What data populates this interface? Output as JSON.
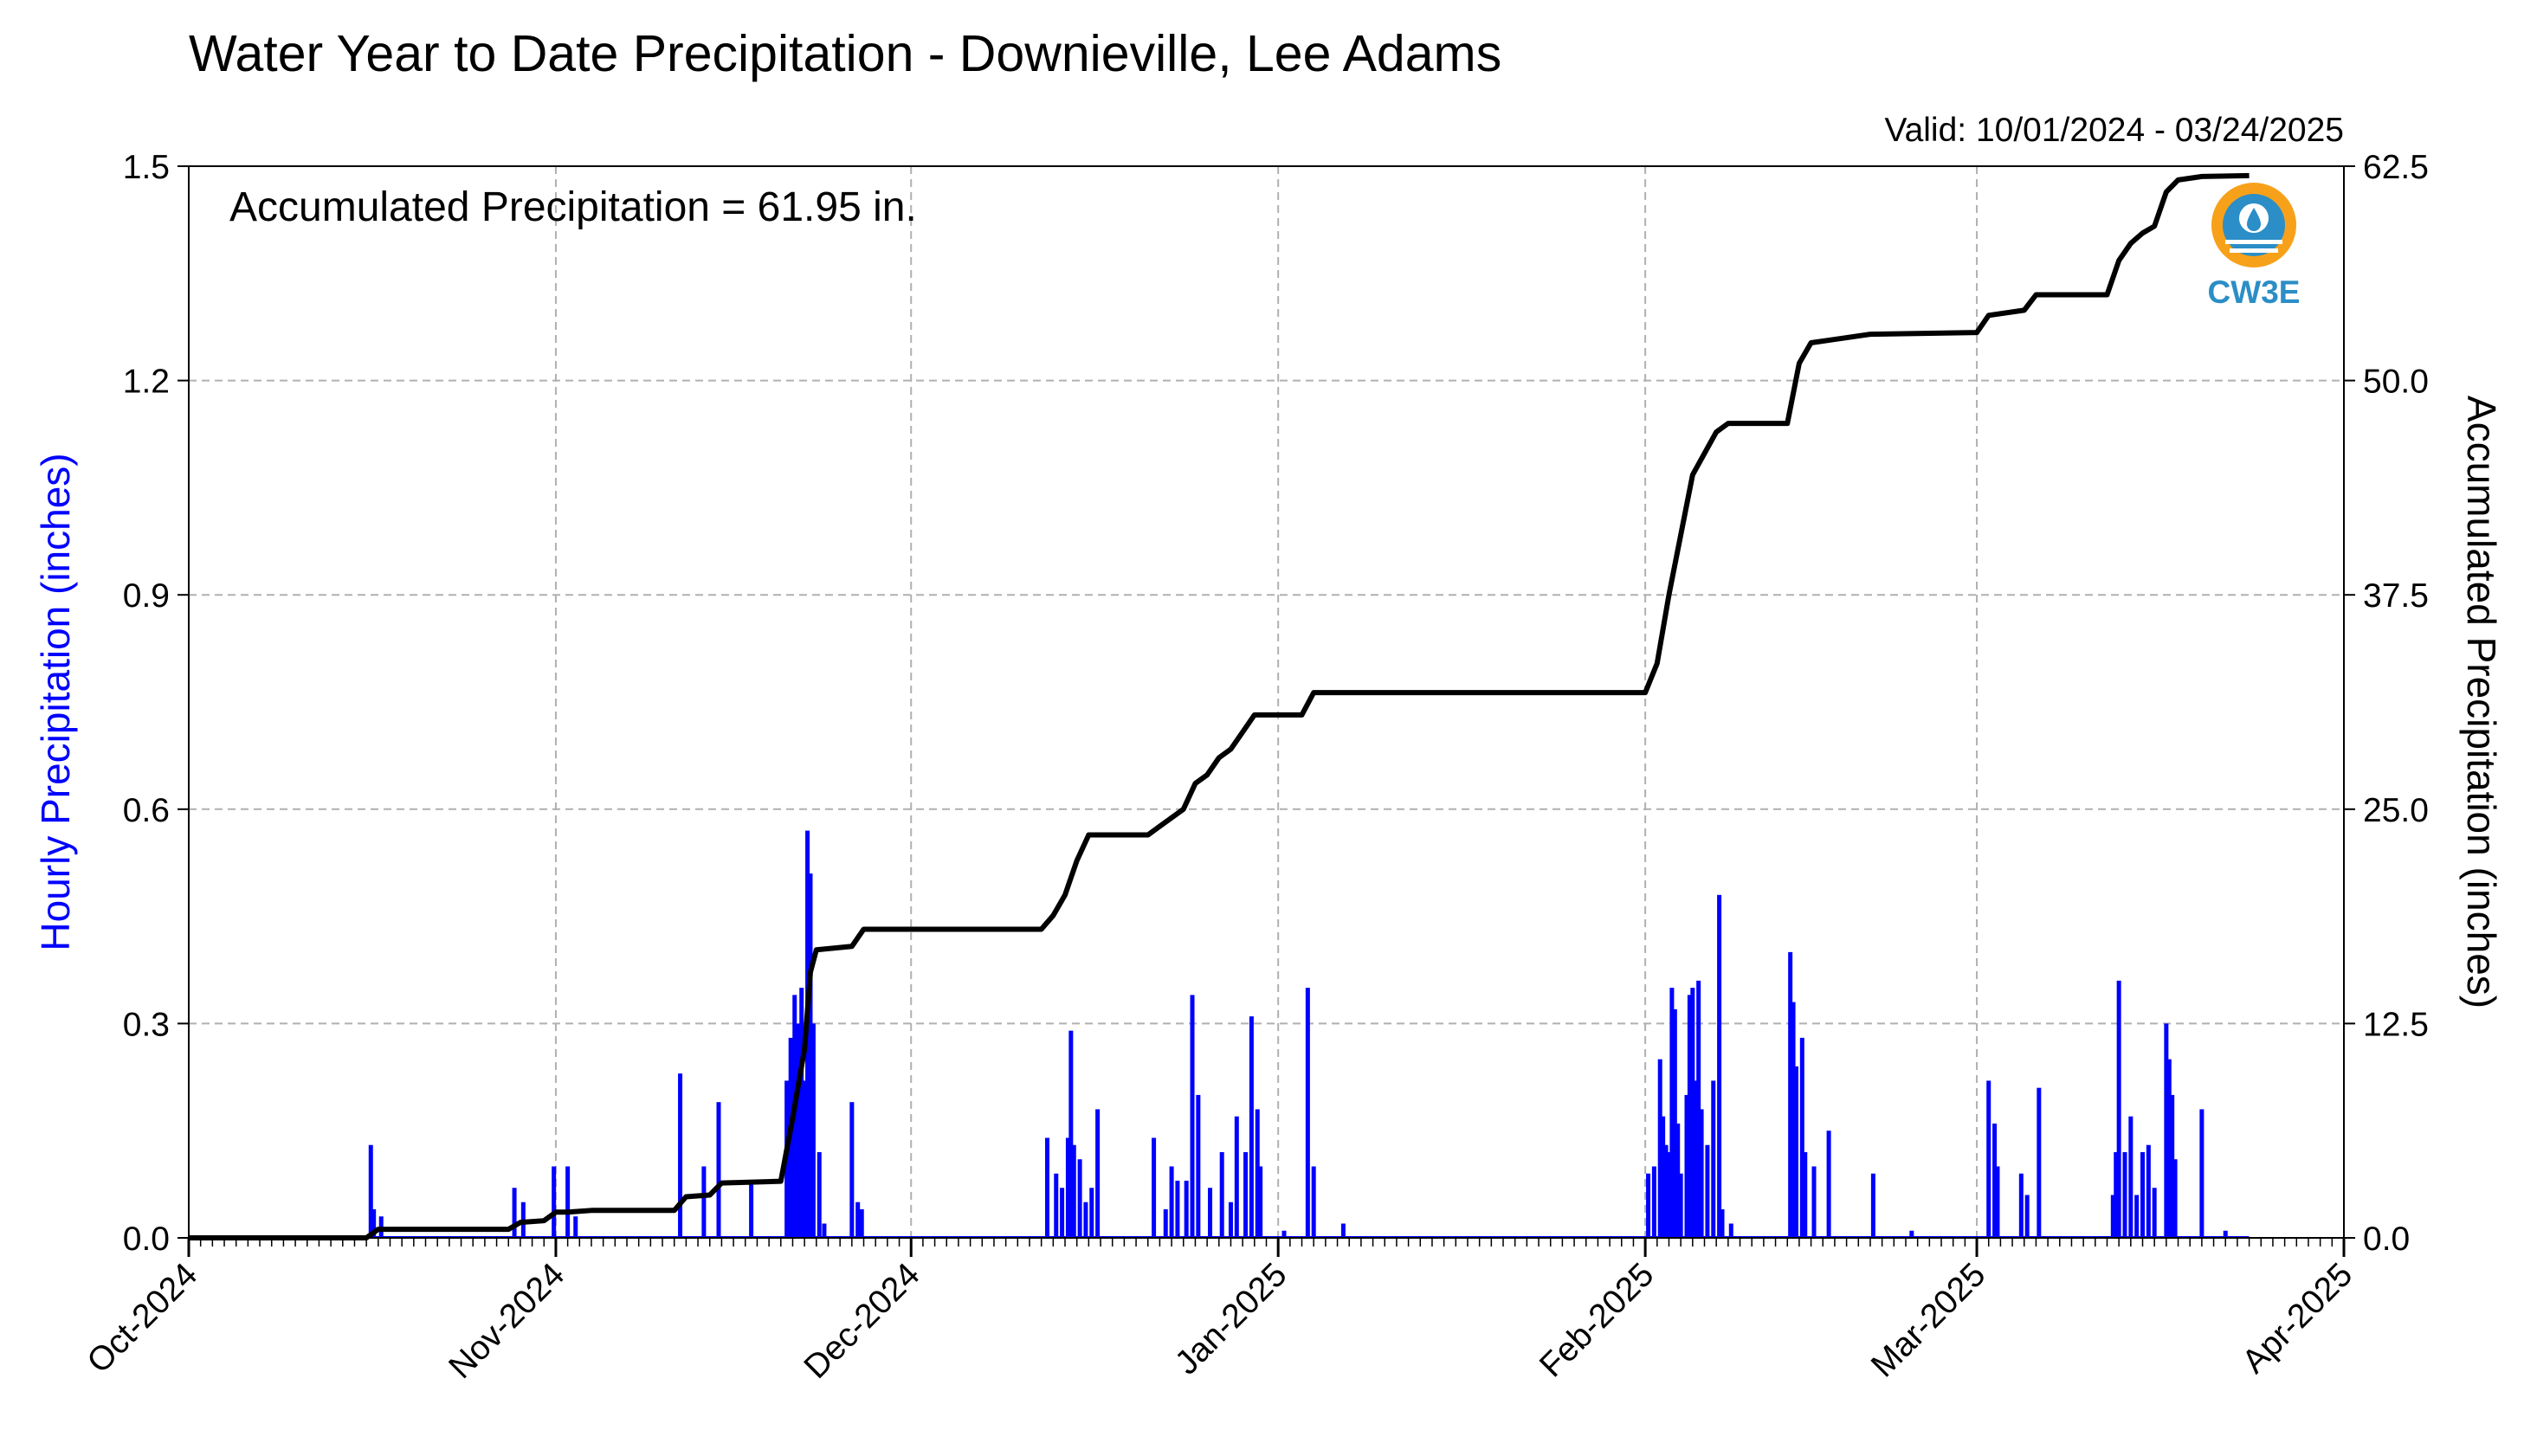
{
  "chart_data": {
    "type": "bar+line",
    "title": "Water Year to Date Precipitation - Downieville, Lee Adams",
    "valid_text": "Valid: 10/01/2024 - 03/24/2025",
    "annotation": "Accumulated Precipitation = 61.95 in.",
    "logo_text": "CW3E",
    "y_left": {
      "label": "Hourly Precipitation (inches)",
      "range": [
        0,
        1.5
      ],
      "ticks": [
        "0.0",
        "0.3",
        "0.6",
        "0.9",
        "1.2",
        "1.5"
      ],
      "color": "#0000ff"
    },
    "y_right": {
      "label": "Accumulated Precipitation (inches)",
      "range": [
        0,
        62.5
      ],
      "ticks": [
        "0.0",
        "12.5",
        "25.0",
        "37.5",
        "50.0",
        "62.5"
      ],
      "color": "#000000"
    },
    "x_axis": {
      "start": "2024-10-01",
      "end": "2025-04-01",
      "tick_labels": [
        "Oct-2024",
        "Nov-2024",
        "Dec-2024",
        "Jan-2025",
        "Feb-2025",
        "Mar-2025",
        "Apr-2025"
      ],
      "tick_dates": [
        "2024-10-01",
        "2024-11-01",
        "2024-12-01",
        "2025-01-01",
        "2025-02-01",
        "2025-03-01",
        "2025-04-01"
      ]
    },
    "grid": true,
    "series": [
      {
        "name": "Hourly Precipitation",
        "kind": "bar",
        "color": "#0000ff",
        "points": [
          [
            "2024-10-16T09",
            0.13
          ],
          [
            "2024-10-16T15",
            0.04
          ],
          [
            "2024-10-17T06",
            0.03
          ],
          [
            "2024-10-28T12",
            0.07
          ],
          [
            "2024-10-29T06",
            0.05
          ],
          [
            "2024-10-31T20",
            0.1
          ],
          [
            "2024-11-02T00",
            0.1
          ],
          [
            "2024-11-02T16",
            0.03
          ],
          [
            "2024-11-11T12",
            0.23
          ],
          [
            "2024-11-13T12",
            0.1
          ],
          [
            "2024-11-14T18",
            0.19
          ],
          [
            "2024-11-17T12",
            0.08
          ],
          [
            "2024-11-20T12",
            0.22
          ],
          [
            "2024-11-20T20",
            0.28
          ],
          [
            "2024-11-21T04",
            0.34
          ],
          [
            "2024-11-21T12",
            0.3
          ],
          [
            "2024-11-21T18",
            0.35
          ],
          [
            "2024-11-22T00",
            0.22
          ],
          [
            "2024-11-22T06",
            0.57
          ],
          [
            "2024-11-22T12",
            0.51
          ],
          [
            "2024-11-22T18",
            0.3
          ],
          [
            "2024-11-23T06",
            0.12
          ],
          [
            "2024-11-23T16",
            0.02
          ],
          [
            "2024-11-26T00",
            0.19
          ],
          [
            "2024-11-26T12",
            0.05
          ],
          [
            "2024-11-26T20",
            0.04
          ],
          [
            "2024-12-12T12",
            0.14
          ],
          [
            "2024-12-13T06",
            0.09
          ],
          [
            "2024-12-13T18",
            0.07
          ],
          [
            "2024-12-14T06",
            0.14
          ],
          [
            "2024-12-14T12",
            0.29
          ],
          [
            "2024-12-14T18",
            0.13
          ],
          [
            "2024-12-15T06",
            0.11
          ],
          [
            "2024-12-15T18",
            0.05
          ],
          [
            "2024-12-16T06",
            0.07
          ],
          [
            "2024-12-16T18",
            0.18
          ],
          [
            "2024-12-21T12",
            0.14
          ],
          [
            "2024-12-22T12",
            0.04
          ],
          [
            "2024-12-23T00",
            0.1
          ],
          [
            "2024-12-23T12",
            0.08
          ],
          [
            "2024-12-24T06",
            0.08
          ],
          [
            "2024-12-24T18",
            0.34
          ],
          [
            "2024-12-25T06",
            0.2
          ],
          [
            "2024-12-26T06",
            0.07
          ],
          [
            "2024-12-27T06",
            0.12
          ],
          [
            "2024-12-28T00",
            0.05
          ],
          [
            "2024-12-28T12",
            0.17
          ],
          [
            "2024-12-29T06",
            0.12
          ],
          [
            "2024-12-29T18",
            0.31
          ],
          [
            "2024-12-30T06",
            0.18
          ],
          [
            "2024-12-30T12",
            0.1
          ],
          [
            "2025-01-01T12",
            0.01
          ],
          [
            "2025-01-03T12",
            0.35
          ],
          [
            "2025-01-04T00",
            0.1
          ],
          [
            "2025-01-06T12",
            0.02
          ],
          [
            "2025-02-01T06",
            0.09
          ],
          [
            "2025-02-01T18",
            0.1
          ],
          [
            "2025-02-02T06",
            0.25
          ],
          [
            "2025-02-02T12",
            0.17
          ],
          [
            "2025-02-02T18",
            0.13
          ],
          [
            "2025-02-03T00",
            0.12
          ],
          [
            "2025-02-03T06",
            0.35
          ],
          [
            "2025-02-03T12",
            0.32
          ],
          [
            "2025-02-03T18",
            0.16
          ],
          [
            "2025-02-04T00",
            0.09
          ],
          [
            "2025-02-04T12",
            0.2
          ],
          [
            "2025-02-04T18",
            0.34
          ],
          [
            "2025-02-05T00",
            0.35
          ],
          [
            "2025-02-05T06",
            0.22
          ],
          [
            "2025-02-05T12",
            0.36
          ],
          [
            "2025-02-05T18",
            0.18
          ],
          [
            "2025-02-06T06",
            0.13
          ],
          [
            "2025-02-06T18",
            0.22
          ],
          [
            "2025-02-07T06",
            0.48
          ],
          [
            "2025-02-07T12",
            0.04
          ],
          [
            "2025-02-08T06",
            0.02
          ],
          [
            "2025-02-13T06",
            0.4
          ],
          [
            "2025-02-13T12",
            0.33
          ],
          [
            "2025-02-13T18",
            0.24
          ],
          [
            "2025-02-14T06",
            0.28
          ],
          [
            "2025-02-14T12",
            0.12
          ],
          [
            "2025-02-15T06",
            0.1
          ],
          [
            "2025-02-16T12",
            0.15
          ],
          [
            "2025-02-20T06",
            0.09
          ],
          [
            "2025-02-23T12",
            0.01
          ],
          [
            "2025-03-02T00",
            0.22
          ],
          [
            "2025-03-02T12",
            0.16
          ],
          [
            "2025-03-02T18",
            0.1
          ],
          [
            "2025-03-04T18",
            0.09
          ],
          [
            "2025-03-05T06",
            0.06
          ],
          [
            "2025-03-06T06",
            0.21
          ],
          [
            "2025-03-12T12",
            0.06
          ],
          [
            "2025-03-12T18",
            0.12
          ],
          [
            "2025-03-13T00",
            0.36
          ],
          [
            "2025-03-13T12",
            0.12
          ],
          [
            "2025-03-14T00",
            0.17
          ],
          [
            "2025-03-14T12",
            0.06
          ],
          [
            "2025-03-15T00",
            0.12
          ],
          [
            "2025-03-15T12",
            0.13
          ],
          [
            "2025-03-16T00",
            0.07
          ],
          [
            "2025-03-17T00",
            0.3
          ],
          [
            "2025-03-17T06",
            0.25
          ],
          [
            "2025-03-17T12",
            0.2
          ],
          [
            "2025-03-17T18",
            0.11
          ],
          [
            "2025-03-20T00",
            0.18
          ],
          [
            "2025-03-22T00",
            0.01
          ]
        ]
      },
      {
        "name": "Accumulated Precipitation",
        "kind": "line",
        "color": "#000000",
        "points": [
          [
            "2024-10-01",
            0.0
          ],
          [
            "2024-10-16",
            0.0
          ],
          [
            "2024-10-17",
            0.5
          ],
          [
            "2024-10-28",
            0.5
          ],
          [
            "2024-10-29",
            0.9
          ],
          [
            "2024-10-31",
            1.0
          ],
          [
            "2024-11-01",
            1.5
          ],
          [
            "2024-11-02",
            1.5
          ],
          [
            "2024-11-04",
            1.6
          ],
          [
            "2024-11-11",
            1.6
          ],
          [
            "2024-11-12",
            2.4
          ],
          [
            "2024-11-14",
            2.5
          ],
          [
            "2024-11-15",
            3.2
          ],
          [
            "2024-11-20",
            3.3
          ],
          [
            "2024-11-21",
            7.0
          ],
          [
            "2024-11-22",
            11.0
          ],
          [
            "2024-11-22T12",
            15.5
          ],
          [
            "2024-11-23",
            16.8
          ],
          [
            "2024-11-26",
            17.0
          ],
          [
            "2024-11-27",
            18.0
          ],
          [
            "2024-12-12",
            18.0
          ],
          [
            "2024-12-13",
            18.8
          ],
          [
            "2024-12-14",
            20.0
          ],
          [
            "2024-12-15",
            22.0
          ],
          [
            "2024-12-16",
            23.5
          ],
          [
            "2024-12-21",
            23.5
          ],
          [
            "2024-12-22",
            24.0
          ],
          [
            "2024-12-23",
            24.5
          ],
          [
            "2024-12-24",
            25.0
          ],
          [
            "2024-12-25",
            26.5
          ],
          [
            "2024-12-26",
            27.0
          ],
          [
            "2024-12-27",
            28.0
          ],
          [
            "2024-12-28",
            28.5
          ],
          [
            "2024-12-29",
            29.5
          ],
          [
            "2024-12-30",
            30.5
          ],
          [
            "2025-01-03",
            30.5
          ],
          [
            "2025-01-04",
            31.8
          ],
          [
            "2025-02-01",
            31.8
          ],
          [
            "2025-02-02",
            33.5
          ],
          [
            "2025-02-03",
            37.5
          ],
          [
            "2025-02-04",
            41.0
          ],
          [
            "2025-02-05",
            44.5
          ],
          [
            "2025-02-07",
            47.0
          ],
          [
            "2025-02-08",
            47.5
          ],
          [
            "2025-02-13",
            47.5
          ],
          [
            "2025-02-14",
            51.0
          ],
          [
            "2025-02-15",
            52.2
          ],
          [
            "2025-02-17",
            52.4
          ],
          [
            "2025-02-20",
            52.7
          ],
          [
            "2025-03-01",
            52.8
          ],
          [
            "2025-03-02",
            53.8
          ],
          [
            "2025-03-05",
            54.1
          ],
          [
            "2025-03-06",
            55.0
          ],
          [
            "2025-03-12",
            55.0
          ],
          [
            "2025-03-13",
            57.0
          ],
          [
            "2025-03-14",
            58.0
          ],
          [
            "2025-03-15",
            58.6
          ],
          [
            "2025-03-16",
            59.0
          ],
          [
            "2025-03-17",
            61.0
          ],
          [
            "2025-03-18",
            61.7
          ],
          [
            "2025-03-20",
            61.9
          ],
          [
            "2025-03-24",
            61.95
          ]
        ]
      }
    ]
  }
}
